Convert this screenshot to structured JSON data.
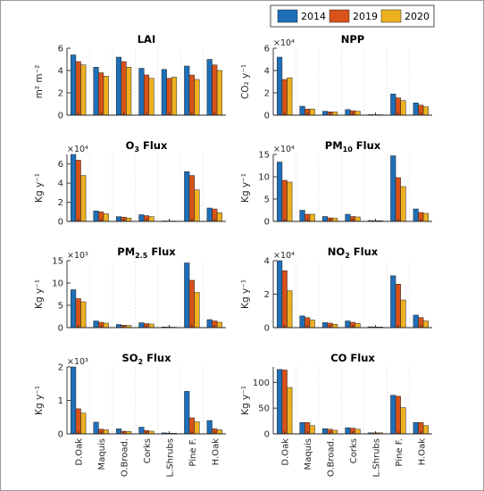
{
  "chart_data": {
    "type": "bar",
    "layout": "grid-4x2",
    "categories": [
      "D.Oak",
      "Maquis",
      "O.Broad.",
      "Corks",
      "L.Shrubs",
      "Pine F.",
      "H.Oak"
    ],
    "series_names": [
      "2014",
      "2019",
      "2020"
    ],
    "colors": [
      "#1f6fb8",
      "#d95319",
      "#edb120"
    ],
    "legend_position": "top-right",
    "grid": false,
    "panels": [
      {
        "key": "lai",
        "title": [
          "LAI"
        ],
        "ylabel": [
          "m² m⁻²"
        ],
        "exponent": "",
        "ylim": [
          0,
          6
        ],
        "yticks": [
          "0",
          "2",
          "4",
          "6"
        ],
        "values": [
          [
            5.4,
            4.3,
            5.2,
            4.2,
            4.1,
            4.4,
            5.0
          ],
          [
            4.8,
            3.8,
            4.8,
            3.6,
            3.3,
            3.6,
            4.5
          ],
          [
            4.5,
            3.5,
            4.3,
            3.3,
            3.4,
            3.2,
            4.0
          ]
        ]
      },
      {
        "key": "npp",
        "title": [
          "NPP"
        ],
        "ylabel": [
          "CO₂ y⁻¹"
        ],
        "exponent": "×10⁴",
        "ylim": [
          0,
          6
        ],
        "yticks": [
          "0",
          "2",
          "4",
          "6"
        ],
        "values": [
          [
            5.2,
            0.8,
            0.35,
            0.5,
            0.05,
            1.9,
            1.1
          ],
          [
            3.2,
            0.55,
            0.3,
            0.4,
            0.04,
            1.55,
            0.9
          ],
          [
            3.35,
            0.55,
            0.28,
            0.35,
            0.04,
            1.3,
            0.75
          ]
        ]
      },
      {
        "key": "o3",
        "title": [
          "O",
          "3",
          " Flux"
        ],
        "ylabel": [
          "Kg y⁻¹"
        ],
        "exponent": "×10⁴",
        "ylim": [
          0,
          7
        ],
        "yticks": [
          "0",
          "2",
          "4",
          "6"
        ],
        "values": [
          [
            7.0,
            1.1,
            0.5,
            0.7,
            0.05,
            5.2,
            1.4
          ],
          [
            6.4,
            1.0,
            0.45,
            0.6,
            0.04,
            4.8,
            1.3
          ],
          [
            4.8,
            0.8,
            0.35,
            0.5,
            0.04,
            3.3,
            0.9
          ]
        ]
      },
      {
        "key": "pm10",
        "title": [
          "PM",
          "10",
          " Flux"
        ],
        "ylabel": [
          "Kg y⁻¹"
        ],
        "exponent": "×10⁴",
        "ylim": [
          0,
          15
        ],
        "yticks": [
          "0",
          "5",
          "10",
          "15"
        ],
        "values": [
          [
            13.3,
            2.5,
            1.1,
            1.6,
            0.2,
            14.7,
            2.8
          ],
          [
            9.2,
            1.6,
            0.8,
            1.1,
            0.15,
            9.8,
            2.0
          ],
          [
            8.8,
            1.6,
            0.7,
            1.0,
            0.15,
            7.8,
            1.8
          ]
        ]
      },
      {
        "key": "pm25",
        "title": [
          "PM",
          "2.5",
          " Flux"
        ],
        "ylabel": [
          "Kg y⁻¹"
        ],
        "exponent": "×10³",
        "ylim": [
          0,
          15
        ],
        "yticks": [
          "0",
          "5",
          "10",
          "15"
        ],
        "values": [
          [
            8.5,
            1.5,
            0.7,
            1.1,
            0.15,
            14.5,
            1.8
          ],
          [
            6.5,
            1.2,
            0.55,
            0.9,
            0.12,
            10.6,
            1.5
          ],
          [
            5.8,
            1.0,
            0.5,
            0.8,
            0.1,
            7.9,
            1.2
          ]
        ]
      },
      {
        "key": "no2",
        "title": [
          "NO",
          "2",
          " Flux"
        ],
        "ylabel": [
          "Kg y⁻¹"
        ],
        "exponent": "×10⁴",
        "ylim": [
          0,
          4
        ],
        "yticks": [
          "0",
          "2",
          "4"
        ],
        "values": [
          [
            4.0,
            0.7,
            0.3,
            0.4,
            0.05,
            3.1,
            0.75
          ],
          [
            3.4,
            0.6,
            0.27,
            0.32,
            0.04,
            2.6,
            0.6
          ],
          [
            2.2,
            0.45,
            0.2,
            0.25,
            0.04,
            1.65,
            0.4
          ]
        ]
      },
      {
        "key": "so2",
        "title": [
          "SO",
          "2",
          " Flux"
        ],
        "ylabel": [
          "Kg y⁻¹"
        ],
        "exponent": "×10³",
        "ylim": [
          0,
          2
        ],
        "yticks": [
          "0",
          "1",
          "2"
        ],
        "values": [
          [
            2.0,
            0.35,
            0.15,
            0.2,
            0.03,
            1.27,
            0.4
          ],
          [
            0.75,
            0.14,
            0.08,
            0.1,
            0.02,
            0.48,
            0.15
          ],
          [
            0.62,
            0.12,
            0.07,
            0.08,
            0.02,
            0.36,
            0.12
          ]
        ]
      },
      {
        "key": "co",
        "title": [
          "CO Flux"
        ],
        "ylabel": [
          "Kg y⁻¹"
        ],
        "exponent": "",
        "ylim": [
          0,
          130
        ],
        "yticks": [
          "0",
          "50",
          "100"
        ],
        "values": [
          [
            125,
            22,
            10,
            12,
            2,
            75,
            22
          ],
          [
            124,
            22,
            9,
            11,
            2,
            73,
            22
          ],
          [
            90,
            16,
            7,
            9,
            2,
            51,
            16
          ]
        ]
      }
    ]
  }
}
